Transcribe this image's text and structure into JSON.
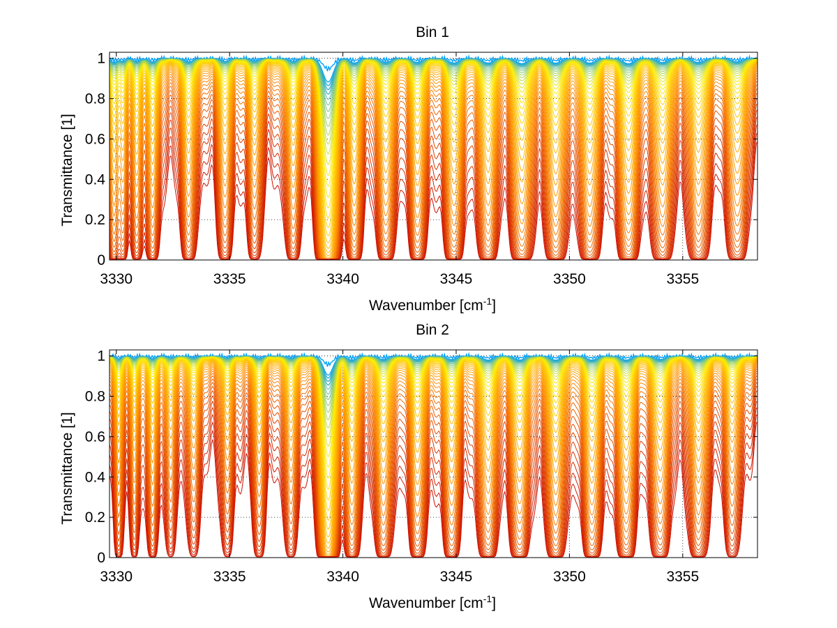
{
  "chart_data": [
    {
      "type": "line",
      "title": "Bin 1",
      "xlabel_main": "Wavenumber [cm",
      "xlabel_sup": "-1",
      "xlabel_end": "]",
      "ylabel": "Transmittance [1]",
      "xlim": [
        3329.7,
        3358.3
      ],
      "ylim": [
        0,
        1.03
      ],
      "xticks": [
        3330,
        3335,
        3340,
        3345,
        3350,
        3355
      ],
      "yticks": [
        0,
        0.2,
        0.4,
        0.6,
        0.8,
        1
      ],
      "grid": true,
      "series_count": 45,
      "colormap": "jet",
      "colors": [
        "#00a0ff",
        "#ffee00",
        "#ff8c00",
        "#cc1100"
      ],
      "absorption_lines": [
        {
          "x": 3329.9,
          "depth": 0.55,
          "width": 0.14
        },
        {
          "x": 3330.3,
          "depth": 0.4,
          "width": 0.12
        },
        {
          "x": 3330.9,
          "depth": 0.45,
          "width": 0.14
        },
        {
          "x": 3331.6,
          "depth": 0.5,
          "width": 0.16
        },
        {
          "x": 3333.2,
          "depth": 0.5,
          "width": 0.18
        },
        {
          "x": 3334.8,
          "depth": 0.45,
          "width": 0.18
        },
        {
          "x": 3336.1,
          "depth": 0.4,
          "width": 0.18
        },
        {
          "x": 3337.8,
          "depth": 0.45,
          "width": 0.18
        },
        {
          "x": 3339.35,
          "depth": 0.995,
          "width": 0.22
        },
        {
          "x": 3340.5,
          "depth": 0.6,
          "width": 0.18
        },
        {
          "x": 3341.9,
          "depth": 0.55,
          "width": 0.2
        },
        {
          "x": 3343.3,
          "depth": 0.55,
          "width": 0.2
        },
        {
          "x": 3344.9,
          "depth": 0.6,
          "width": 0.22
        },
        {
          "x": 3346.4,
          "depth": 0.6,
          "width": 0.22
        },
        {
          "x": 3347.9,
          "depth": 0.65,
          "width": 0.24
        },
        {
          "x": 3349.4,
          "depth": 0.6,
          "width": 0.24
        },
        {
          "x": 3350.9,
          "depth": 0.6,
          "width": 0.24
        },
        {
          "x": 3352.6,
          "depth": 0.65,
          "width": 0.24
        },
        {
          "x": 3354.1,
          "depth": 0.55,
          "width": 0.24
        },
        {
          "x": 3355.7,
          "depth": 0.55,
          "width": 0.24
        },
        {
          "x": 3357.4,
          "depth": 0.5,
          "width": 0.24
        }
      ]
    },
    {
      "type": "line",
      "title": "Bin 2",
      "xlabel_main": "Wavenumber [cm",
      "xlabel_sup": "-1",
      "xlabel_end": "]",
      "ylabel": "Transmittance [1]",
      "xlim": [
        3329.7,
        3358.3
      ],
      "ylim": [
        0,
        1.03
      ],
      "xticks": [
        3330,
        3335,
        3340,
        3345,
        3350,
        3355
      ],
      "yticks": [
        0,
        0.2,
        0.4,
        0.6,
        0.8,
        1
      ],
      "grid": true,
      "series_count": 45,
      "colormap": "jet",
      "colors": [
        "#00a0ff",
        "#ffee00",
        "#ff8c00",
        "#cc1100"
      ],
      "absorption_lines": [
        {
          "x": 3330.1,
          "depth": 0.4,
          "width": 0.12
        },
        {
          "x": 3330.8,
          "depth": 0.35,
          "width": 0.12
        },
        {
          "x": 3331.6,
          "depth": 0.4,
          "width": 0.14
        },
        {
          "x": 3332.4,
          "depth": 0.3,
          "width": 0.14
        },
        {
          "x": 3333.4,
          "depth": 0.3,
          "width": 0.16
        },
        {
          "x": 3334.9,
          "depth": 0.3,
          "width": 0.16
        },
        {
          "x": 3336.3,
          "depth": 0.35,
          "width": 0.16
        },
        {
          "x": 3337.7,
          "depth": 0.35,
          "width": 0.16
        },
        {
          "x": 3339.35,
          "depth": 0.985,
          "width": 0.2
        },
        {
          "x": 3340.4,
          "depth": 0.55,
          "width": 0.18
        },
        {
          "x": 3341.8,
          "depth": 0.5,
          "width": 0.2
        },
        {
          "x": 3343.3,
          "depth": 0.5,
          "width": 0.2
        },
        {
          "x": 3344.8,
          "depth": 0.5,
          "width": 0.2
        },
        {
          "x": 3346.4,
          "depth": 0.55,
          "width": 0.22
        },
        {
          "x": 3347.8,
          "depth": 0.55,
          "width": 0.22
        },
        {
          "x": 3349.4,
          "depth": 0.55,
          "width": 0.22
        },
        {
          "x": 3351.0,
          "depth": 0.55,
          "width": 0.22
        },
        {
          "x": 3352.5,
          "depth": 0.55,
          "width": 0.22
        },
        {
          "x": 3354.0,
          "depth": 0.5,
          "width": 0.22
        },
        {
          "x": 3355.7,
          "depth": 0.5,
          "width": 0.22
        },
        {
          "x": 3357.2,
          "depth": 0.35,
          "width": 0.2
        }
      ]
    }
  ]
}
